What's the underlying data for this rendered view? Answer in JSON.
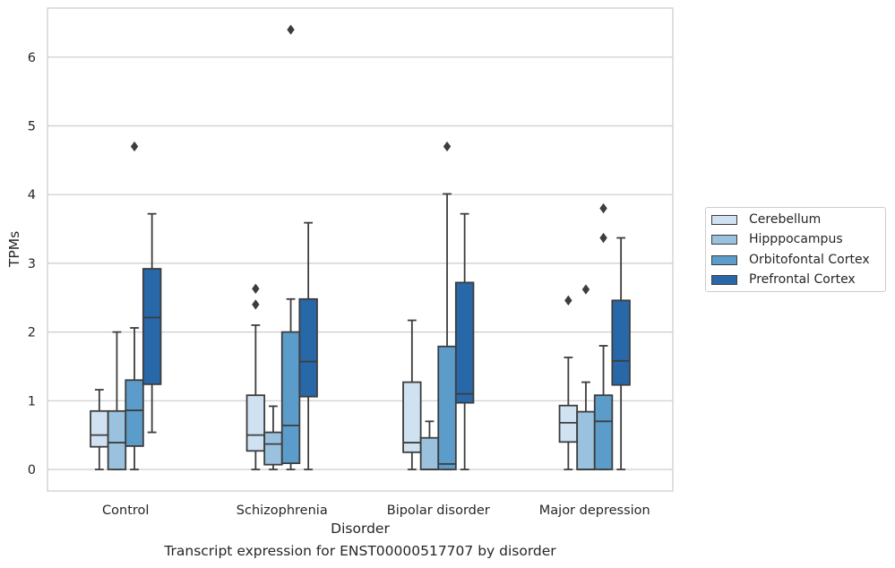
{
  "caption": "Transcript expression for ENST00000517707 by disorder",
  "chart_data": {
    "type": "box",
    "title": "",
    "xlabel": "Disorder",
    "ylabel": "TPMs",
    "ylim": [
      -0.3,
      6.7
    ],
    "yticks": [
      0,
      1,
      2,
      3,
      4,
      5,
      6
    ],
    "grid": "horizontal",
    "legend_position": "right",
    "categories": [
      "Control",
      "Schizophrenia",
      "Bipolar disorder",
      "Major depression"
    ],
    "series": [
      {
        "name": "Cerebellum",
        "color": "#d0e1f1",
        "boxes": [
          {
            "q1": 0.33,
            "median": 0.5,
            "q3": 0.85,
            "whisker_low": 0.0,
            "whisker_high": 1.16,
            "outliers": []
          },
          {
            "q1": 0.27,
            "median": 0.5,
            "q3": 1.08,
            "whisker_low": 0.0,
            "whisker_high": 2.1,
            "outliers": [
              2.4,
              2.63
            ]
          },
          {
            "q1": 0.25,
            "median": 0.39,
            "q3": 1.27,
            "whisker_low": 0.0,
            "whisker_high": 2.17,
            "outliers": []
          },
          {
            "q1": 0.4,
            "median": 0.68,
            "q3": 0.93,
            "whisker_low": 0.0,
            "whisker_high": 1.63,
            "outliers": [
              2.46
            ]
          }
        ]
      },
      {
        "name": "Hipppocampus",
        "color": "#9ac2de",
        "boxes": [
          {
            "q1": 0.0,
            "median": 0.39,
            "q3": 0.85,
            "whisker_low": 0.0,
            "whisker_high": 2.0,
            "outliers": []
          },
          {
            "q1": 0.07,
            "median": 0.37,
            "q3": 0.54,
            "whisker_low": 0.0,
            "whisker_high": 0.92,
            "outliers": []
          },
          {
            "q1": 0.0,
            "median": 0.0,
            "q3": 0.46,
            "whisker_low": 0.0,
            "whisker_high": 0.7,
            "outliers": []
          },
          {
            "q1": 0.0,
            "median": 0.0,
            "q3": 0.84,
            "whisker_low": 0.0,
            "whisker_high": 1.27,
            "outliers": [
              2.62
            ]
          }
        ]
      },
      {
        "name": "Orbitofontal Cortex",
        "color": "#5c9cca",
        "boxes": [
          {
            "q1": 0.34,
            "median": 0.86,
            "q3": 1.3,
            "whisker_low": 0.0,
            "whisker_high": 2.06,
            "outliers": [
              4.7
            ]
          },
          {
            "q1": 0.09,
            "median": 0.64,
            "q3": 2.0,
            "whisker_low": 0.0,
            "whisker_high": 2.48,
            "outliers": [
              6.4
            ]
          },
          {
            "q1": 0.0,
            "median": 0.08,
            "q3": 1.79,
            "whisker_low": 0.0,
            "whisker_high": 4.01,
            "outliers": [
              4.7
            ]
          },
          {
            "q1": 0.0,
            "median": 0.7,
            "q3": 1.08,
            "whisker_low": 0.0,
            "whisker_high": 1.8,
            "outliers": [
              3.37,
              3.8
            ]
          }
        ]
      },
      {
        "name": "Prefrontal Cortex",
        "color": "#2868a8",
        "boxes": [
          {
            "q1": 1.24,
            "median": 2.21,
            "q3": 2.92,
            "whisker_low": 0.54,
            "whisker_high": 3.72,
            "outliers": []
          },
          {
            "q1": 1.06,
            "median": 1.57,
            "q3": 2.48,
            "whisker_low": 0.0,
            "whisker_high": 3.59,
            "outliers": []
          },
          {
            "q1": 0.97,
            "median": 1.1,
            "q3": 2.72,
            "whisker_low": 0.0,
            "whisker_high": 3.72,
            "outliers": []
          },
          {
            "q1": 1.23,
            "median": 1.58,
            "q3": 2.46,
            "whisker_low": 0.0,
            "whisker_high": 3.37,
            "outliers": []
          }
        ]
      }
    ]
  }
}
